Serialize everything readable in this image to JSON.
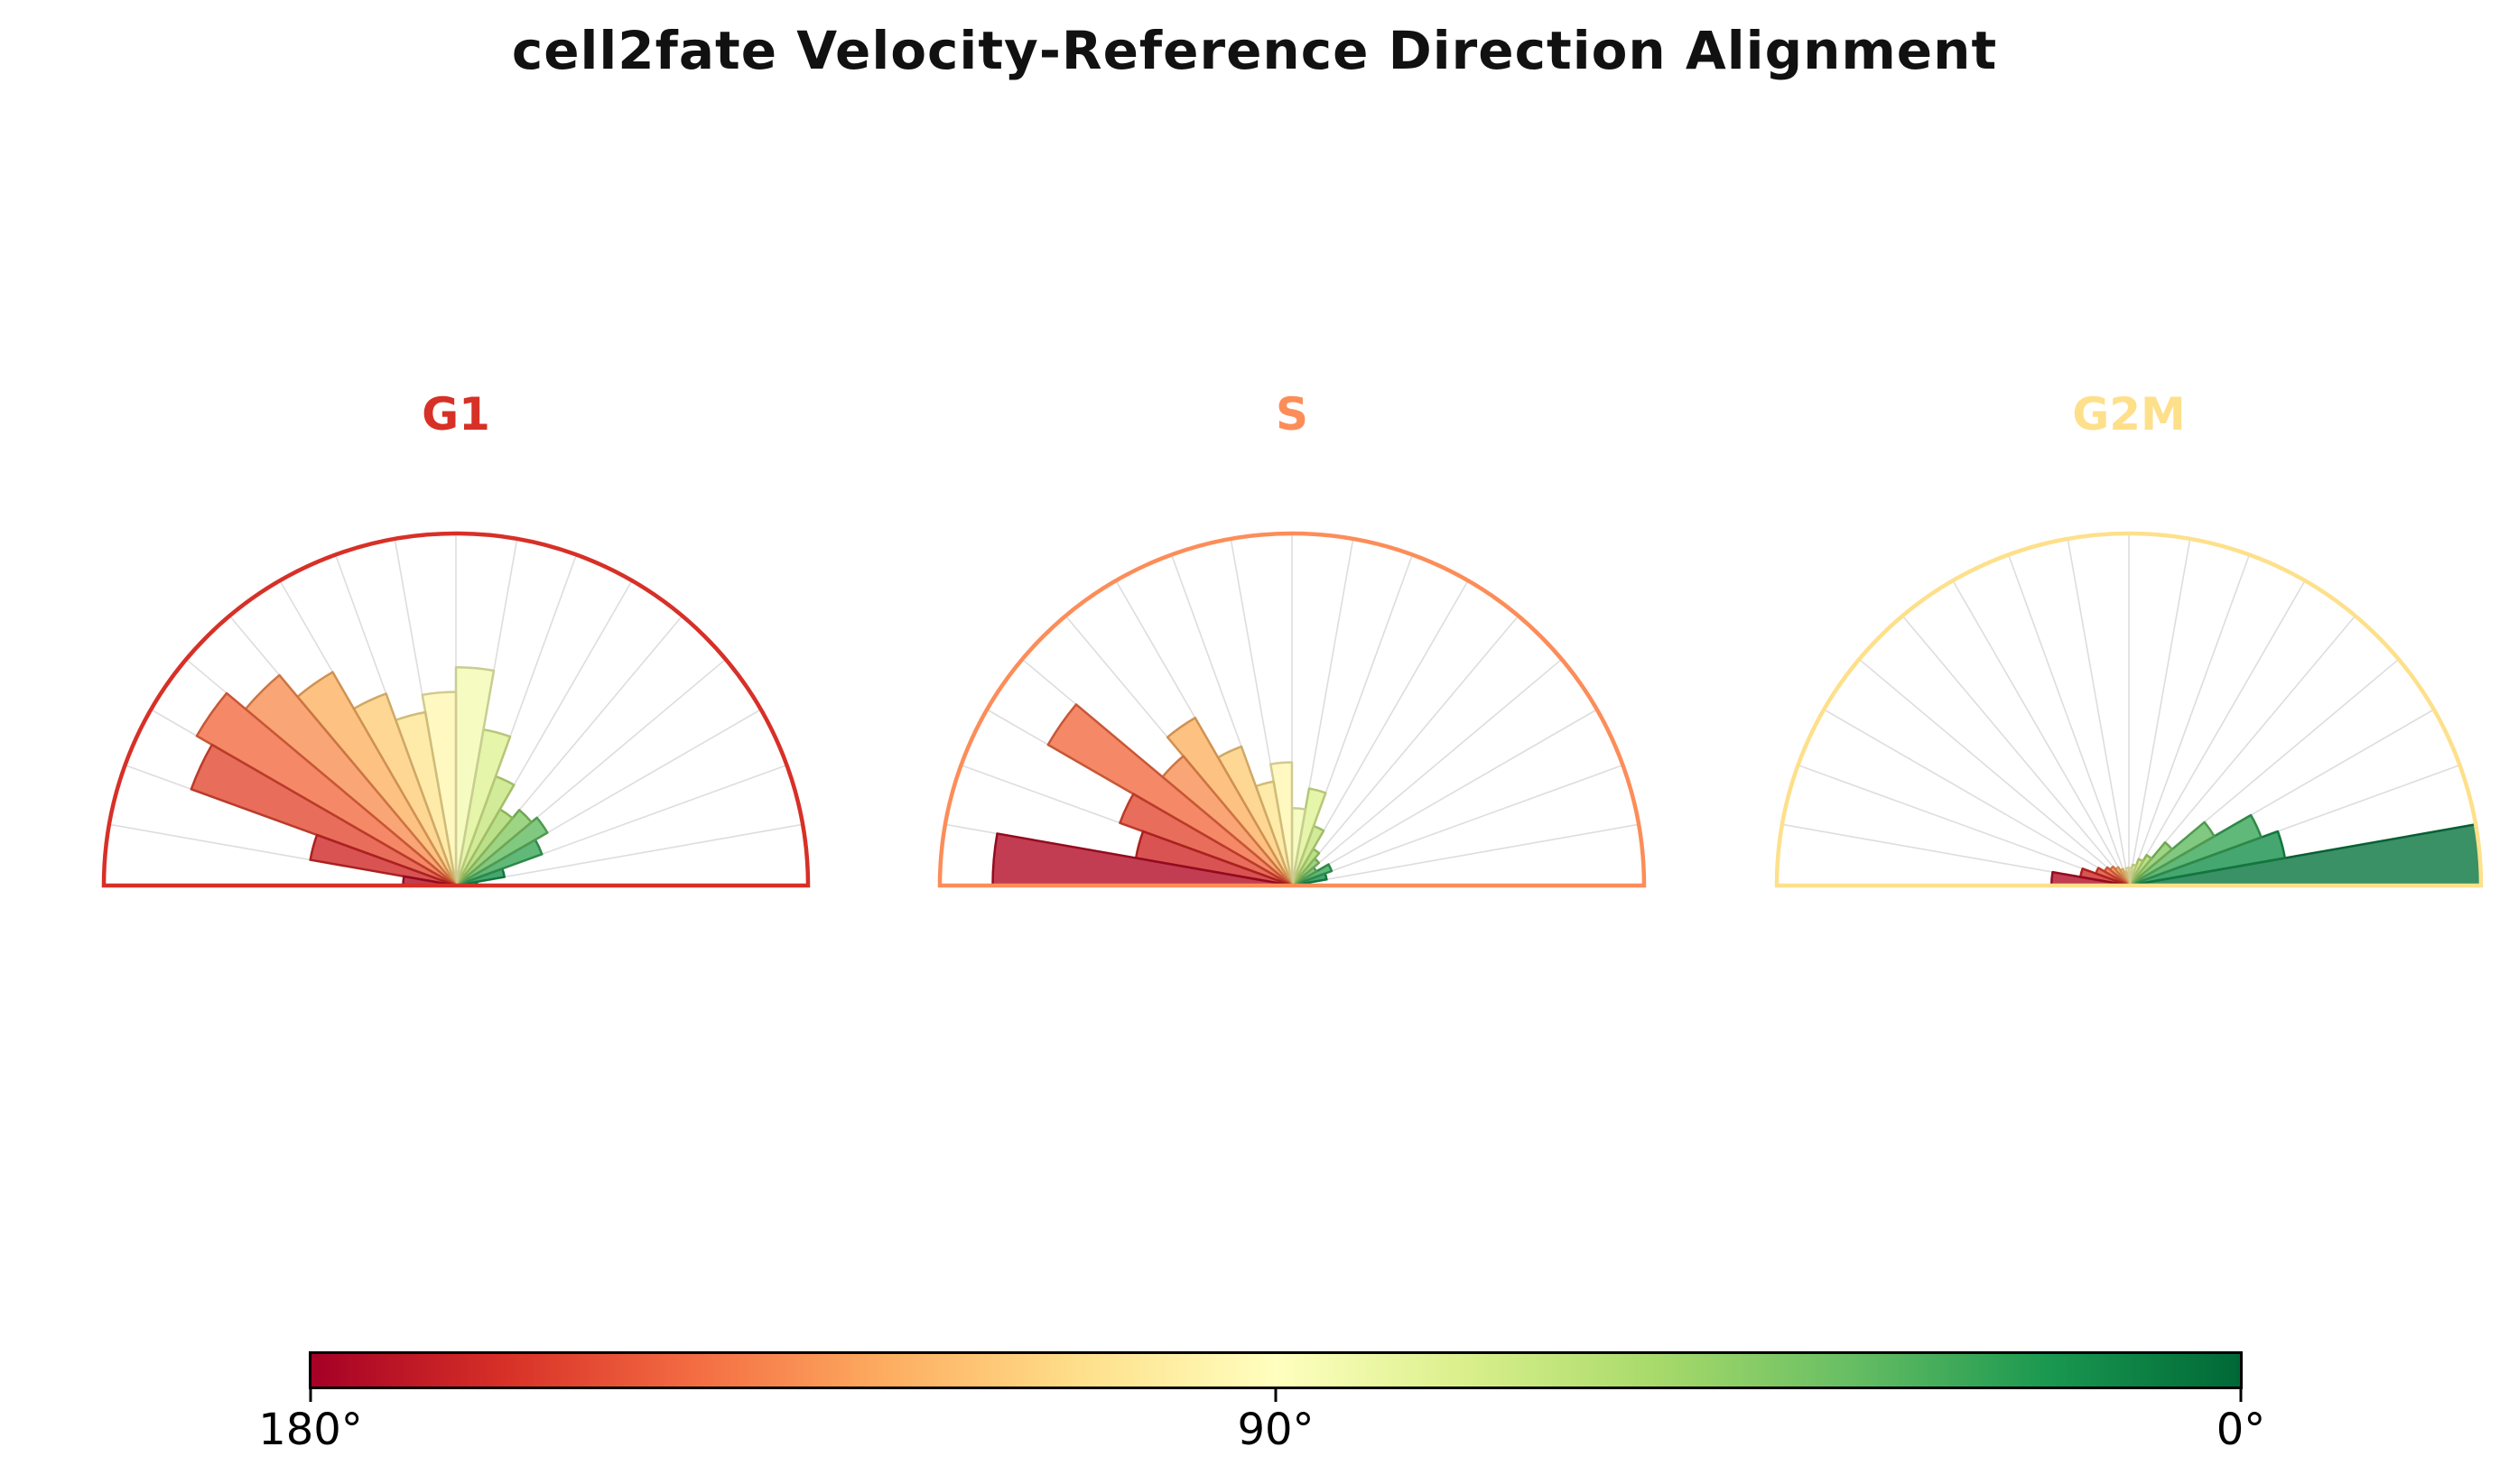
{
  "title": "cell2fate Velocity-Reference Direction Alignment",
  "chart_data": {
    "type": "polar-histogram-row",
    "description": "Three half-circle rose histograms of velocity-reference angle alignment per cell-cycle phase; bars colored by angle (red=180°, green=0°).",
    "angle_range_deg": [
      0,
      180
    ],
    "bin_width_deg": 10,
    "bin_edges_deg": [
      0,
      10,
      20,
      30,
      40,
      50,
      60,
      70,
      80,
      90,
      100,
      110,
      120,
      130,
      140,
      150,
      160,
      170,
      180
    ],
    "colormap": {
      "name": "RdYlGn (180°→0°)",
      "stops": [
        "#a50026",
        "#d73027",
        "#f46d43",
        "#fdae61",
        "#fee08b",
        "#ffffbf",
        "#d9ef8b",
        "#a6d96a",
        "#66bd63",
        "#1a9850",
        "#006837"
      ]
    },
    "subplots": [
      {
        "label": "G1",
        "outline_color": "#d73027",
        "values": [
          0.06,
          0.14,
          0.26,
          0.3,
          0.28,
          0.25,
          0.33,
          0.45,
          0.62,
          0.55,
          0.5,
          0.58,
          0.7,
          0.78,
          0.85,
          0.8,
          0.42,
          0.15
        ]
      },
      {
        "label": "S",
        "outline_color": "#fc8d59",
        "values": [
          0.05,
          0.1,
          0.12,
          0.08,
          0.1,
          0.12,
          0.18,
          0.28,
          0.22,
          0.35,
          0.3,
          0.42,
          0.55,
          0.48,
          0.8,
          0.52,
          0.45,
          0.85
        ]
      },
      {
        "label": "G2M",
        "outline_color": "#fee08b",
        "values": [
          1.0,
          0.45,
          0.4,
          0.28,
          0.16,
          0.1,
          0.08,
          0.06,
          0.05,
          0.05,
          0.04,
          0.05,
          0.06,
          0.07,
          0.08,
          0.1,
          0.14,
          0.22
        ]
      }
    ],
    "colorbar": {
      "tick_labels": [
        "180°",
        "90°",
        "0°"
      ],
      "left_color": "#a50026",
      "right_color": "#006837"
    },
    "grid": {
      "spokes_every_deg": 10,
      "spoke_color": "#dddddd"
    }
  },
  "layout_note": "three semicircle polar subplots in one row, shared horizontal colorbar below"
}
